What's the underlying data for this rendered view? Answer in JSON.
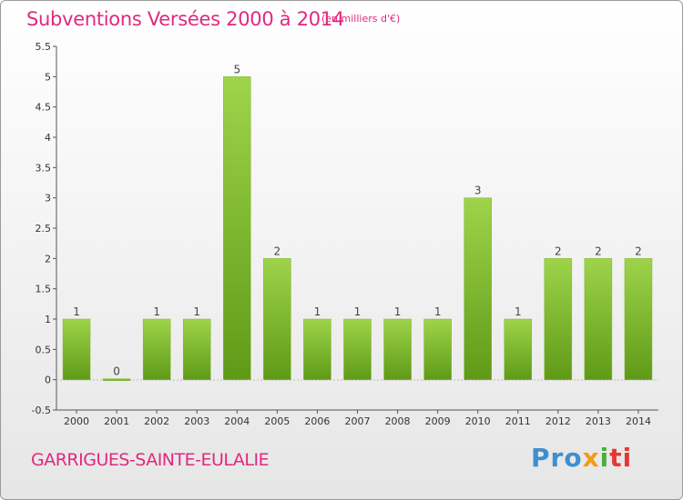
{
  "title": "Subventions Versées 2000 à 2014",
  "subtitle": "(en milliers d'€)",
  "commune": "GARRIGUES-SAINTE-EULALIE",
  "logo": {
    "parts": [
      "Pro",
      "x",
      "i",
      "ti"
    ]
  },
  "colors": {
    "accent": "#e0297e",
    "bar_light": "#9ed44a",
    "bar_dark": "#5f9a17",
    "axis": "#555555"
  },
  "chart_data": {
    "type": "bar",
    "categories": [
      "2000",
      "2001",
      "2002",
      "2003",
      "2004",
      "2005",
      "2006",
      "2007",
      "2008",
      "2009",
      "2010",
      "2011",
      "2012",
      "2013",
      "2014"
    ],
    "values": [
      1,
      0,
      1,
      1,
      5,
      2,
      1,
      1,
      1,
      1,
      3,
      1,
      2,
      2,
      2
    ],
    "value_labels": [
      "1",
      "0",
      "1",
      "1",
      "5",
      "2",
      "1",
      "1",
      "1",
      "1",
      "3",
      "1",
      "2",
      "2",
      "2"
    ],
    "yticks": [
      "-0.5",
      "0",
      "0.5",
      "1",
      "1.5",
      "2",
      "2.5",
      "3",
      "3.5",
      "4",
      "4.5",
      "5",
      "5.5"
    ],
    "ylim": [
      -0.5,
      5.5
    ],
    "grid": false
  }
}
